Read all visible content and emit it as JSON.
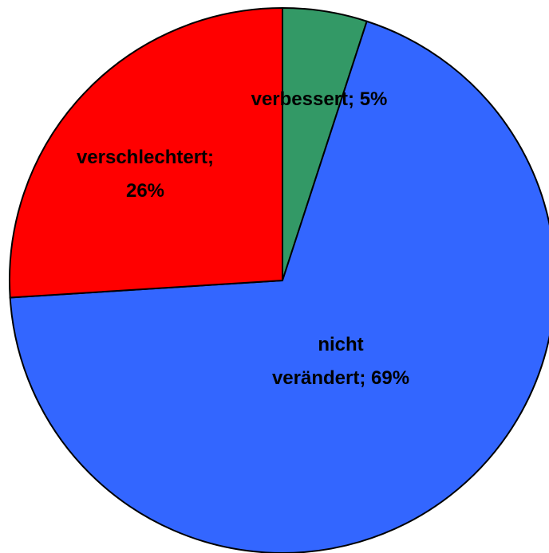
{
  "chart_data": {
    "type": "pie",
    "categories": [
      "verbessert",
      "nicht verändert",
      "verschlechtert"
    ],
    "values": [
      5,
      69,
      26
    ],
    "value_labels": [
      "verbessert; 5%",
      "nicht\nverändert; 69%",
      "verschlechtert;\n26%"
    ],
    "colors": [
      "#339966",
      "#3366ff",
      "#ff0000"
    ]
  }
}
